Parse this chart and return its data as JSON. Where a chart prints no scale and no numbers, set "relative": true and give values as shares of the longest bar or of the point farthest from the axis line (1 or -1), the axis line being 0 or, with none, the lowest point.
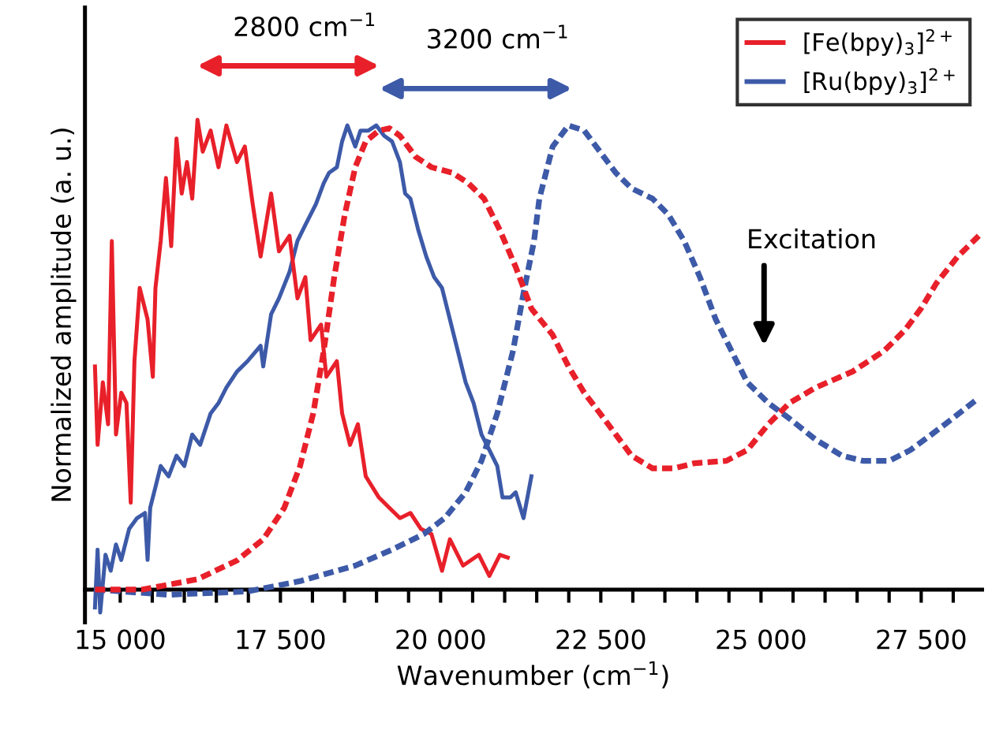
{
  "chart_data": {
    "type": "line",
    "relative": true,
    "xlabel": "Wavenumber (cm$^{−1}$)",
    "ylabel": "Normalized amplitude (a. u.)",
    "xlim": [
      14450,
      28450
    ],
    "xticks": [
      {
        "value": 15000,
        "label": "15 000"
      },
      {
        "value": 15500,
        "label": null
      },
      {
        "value": 16000,
        "label": null
      },
      {
        "value": 16500,
        "label": null
      },
      {
        "value": 17000,
        "label": null
      },
      {
        "value": 17500,
        "label": "17 500"
      },
      {
        "value": 18000,
        "label": null
      },
      {
        "value": 18500,
        "label": null
      },
      {
        "value": 19000,
        "label": null
      },
      {
        "value": 19500,
        "label": null
      },
      {
        "value": 20000,
        "label": "20 000"
      },
      {
        "value": 20500,
        "label": null
      },
      {
        "value": 21000,
        "label": null
      },
      {
        "value": 21500,
        "label": null
      },
      {
        "value": 22000,
        "label": null
      },
      {
        "value": 22500,
        "label": "22 500"
      },
      {
        "value": 23000,
        "label": null
      },
      {
        "value": 23500,
        "label": null
      },
      {
        "value": 24000,
        "label": null
      },
      {
        "value": 24500,
        "label": null
      },
      {
        "value": 25000,
        "label": "25 000"
      },
      {
        "value": 25500,
        "label": null
      },
      {
        "value": 26000,
        "label": null
      },
      {
        "value": 26500,
        "label": null
      },
      {
        "value": 27000,
        "label": null
      },
      {
        "value": 27500,
        "label": "27 500"
      },
      {
        "value": 28000,
        "label": null
      }
    ],
    "grid": false,
    "legend": "top right",
    "annotations": [
      "2800 cm$^{−1}$",
      "3200 cm$^{−1}$",
      "Excitation"
    ],
    "series": [
      {
        "name": "[Fe(bpy)$_{3}$]$^{2+}$",
        "color": "#e8202a",
        "line_style": "solid",
        "x": [
          14606,
          14647,
          14729,
          14811,
          14869,
          14934,
          15016,
          15098,
          15164,
          15222,
          15304,
          15427,
          15509,
          15550,
          15632,
          15714,
          15796,
          15878,
          15960,
          16042,
          16124,
          16206,
          16288,
          16411,
          16534,
          16657,
          16822,
          16945,
          17068,
          17191,
          17355,
          17478,
          17642,
          17766,
          17889,
          17971,
          18135,
          18217,
          18381,
          18463,
          18586,
          18709,
          18832,
          19037,
          19201,
          19365,
          19529,
          19694,
          19858,
          20022,
          20145,
          20350,
          20597,
          20761,
          20925,
          21048
        ],
        "values": [
          0.475,
          0.308,
          0.441,
          0.352,
          0.742,
          0.33,
          0.419,
          0.397,
          0.185,
          0.486,
          0.642,
          0.575,
          0.453,
          0.642,
          0.742,
          0.876,
          0.731,
          0.96,
          0.843,
          0.91,
          0.832,
          1,
          0.932,
          0.977,
          0.899,
          0.988,
          0.91,
          0.943,
          0.82,
          0.709,
          0.843,
          0.72,
          0.753,
          0.62,
          0.665,
          0.531,
          0.564,
          0.453,
          0.486,
          0.375,
          0.308,
          0.352,
          0.241,
          0.196,
          0.174,
          0.152,
          0.163,
          0.129,
          0.118,
          0.04,
          0.107,
          0.051,
          0.074,
          0.029,
          0.074,
          0.068
        ]
      },
      {
        "name": "[Ru(bpy)$_{3}$]$^{2+}$",
        "color": "#3d5aa8",
        "line_style": "solid",
        "x": [
          14606,
          14647,
          14688,
          14770,
          14852,
          14934,
          15016,
          15139,
          15262,
          15386,
          15427,
          15468,
          15550,
          15632,
          15755,
          15878,
          16001,
          16124,
          16247,
          16411,
          16534,
          16657,
          16822,
          16986,
          17191,
          17232,
          17355,
          17478,
          17642,
          17766,
          17889,
          18053,
          18176,
          18258,
          18381,
          18463,
          18545,
          18668,
          18750,
          18873,
          18996,
          19119,
          19242,
          19365,
          19447,
          19529,
          19652,
          19776,
          19899,
          20022,
          20145,
          20268,
          20391,
          20515,
          20638,
          20761,
          20884,
          20966,
          21089,
          21171,
          21294,
          21417
        ],
        "values": [
          -0.038,
          0.085,
          -0.049,
          0.074,
          0.04,
          0.096,
          0.063,
          0.129,
          0.152,
          0.163,
          0.063,
          0.174,
          0.218,
          0.263,
          0.241,
          0.285,
          0.263,
          0.33,
          0.308,
          0.375,
          0.397,
          0.43,
          0.464,
          0.486,
          0.519,
          0.475,
          0.586,
          0.62,
          0.676,
          0.742,
          0.776,
          0.82,
          0.865,
          0.887,
          0.899,
          0.954,
          0.988,
          0.943,
          0.977,
          0.977,
          0.988,
          0.966,
          0.954,
          0.91,
          0.843,
          0.832,
          0.765,
          0.709,
          0.665,
          0.642,
          0.575,
          0.508,
          0.441,
          0.397,
          0.33,
          0.297,
          0.263,
          0.196,
          0.196,
          0.207,
          0.152,
          0.241
        ]
      },
      {
        "color": "#e8202a",
        "line_style": "dashed",
        "x": [
          14606,
          15345,
          16206,
          16822,
          17232,
          17560,
          17807,
          18012,
          18176,
          18340,
          18504,
          18668,
          18832,
          19037,
          19201,
          19365,
          19611,
          19858,
          20186,
          20432,
          20679,
          20925,
          21171,
          21417,
          21749,
          21995,
          22241,
          22488,
          22734,
          22980,
          23308,
          23637,
          23965,
          24458,
          24786,
          25115,
          25443,
          25854,
          26428,
          26921,
          27250,
          27496,
          27742,
          28071,
          28399
        ],
        "values": [
          0,
          0,
          0.022,
          0.062,
          0.107,
          0.174,
          0.263,
          0.375,
          0.508,
          0.665,
          0.798,
          0.899,
          0.954,
          0.977,
          0.982,
          0.966,
          0.921,
          0.899,
          0.887,
          0.865,
          0.832,
          0.765,
          0.687,
          0.598,
          0.542,
          0.475,
          0.419,
          0.375,
          0.33,
          0.285,
          0.258,
          0.258,
          0.269,
          0.274,
          0.297,
          0.352,
          0.397,
          0.43,
          0.464,
          0.508,
          0.553,
          0.598,
          0.653,
          0.709,
          0.753
        ]
      },
      {
        "color": "#3d5aa8",
        "line_style": "dashed",
        "x": [
          14606,
          15755,
          16986,
          17807,
          18668,
          19242,
          19735,
          20063,
          20391,
          20638,
          20884,
          21130,
          21294,
          21458,
          21541,
          21749,
          21995,
          22241,
          22488,
          22734,
          22980,
          23308,
          23555,
          23801,
          24047,
          24294,
          24540,
          24786,
          25115,
          25443,
          25854,
          26264,
          26592,
          27003,
          27332,
          27660,
          27989,
          28399
        ],
        "values": [
          0,
          -0.011,
          -0.004,
          0.018,
          0.051,
          0.085,
          0.118,
          0.152,
          0.207,
          0.274,
          0.375,
          0.508,
          0.631,
          0.742,
          0.832,
          0.943,
          0.988,
          0.977,
          0.932,
          0.887,
          0.854,
          0.832,
          0.798,
          0.742,
          0.665,
          0.575,
          0.508,
          0.441,
          0.397,
          0.364,
          0.319,
          0.285,
          0.274,
          0.274,
          0.297,
          0.33,
          0.364,
          0.408
        ]
      }
    ]
  }
}
